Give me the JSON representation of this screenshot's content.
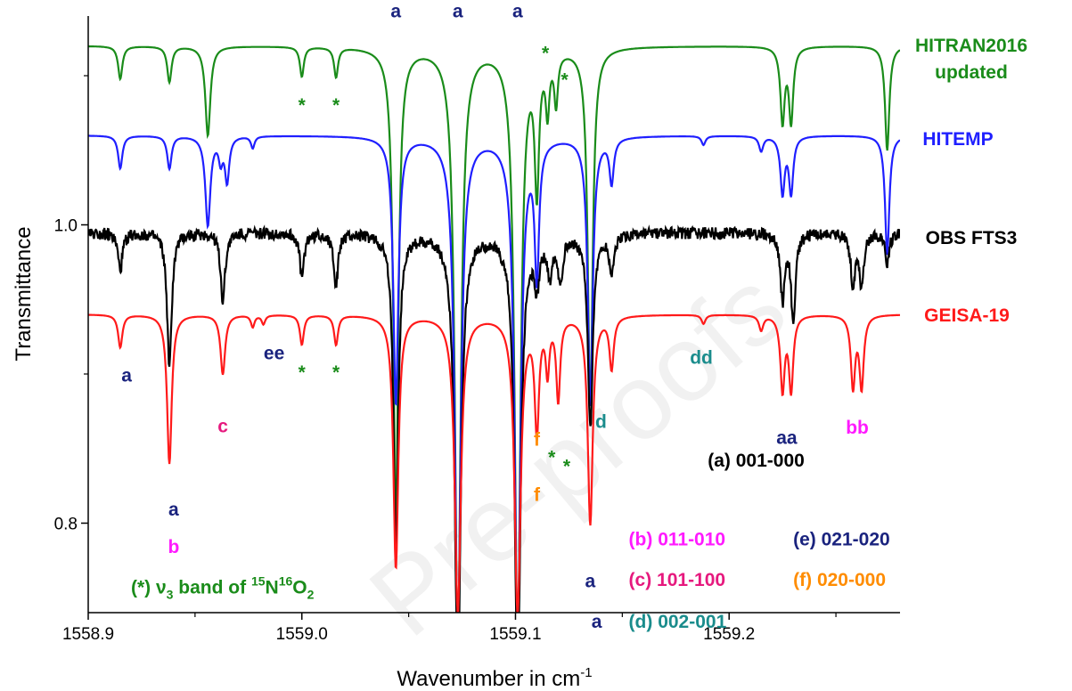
{
  "chart_data": {
    "type": "line",
    "xlabel": "Wavenumber in cm",
    "xlabel_sup": "-1",
    "ylabel": "Transmittance",
    "xlim": [
      1558.9,
      1559.28
    ],
    "x_ticks": [
      {
        "value": 1558.9,
        "label": "1558.9"
      },
      {
        "value": 1559.0,
        "label": "1559.0"
      },
      {
        "value": 1559.1,
        "label": "1559.1"
      },
      {
        "value": 1559.2,
        "label": "1559.2"
      }
    ],
    "y_ticks": [
      {
        "value": 1.0,
        "label": "1.0"
      },
      {
        "value": 0.8,
        "label": "0.8"
      }
    ],
    "ylim": [
      0.74,
      1.14
    ],
    "watermark": "Pre-proofs",
    "series": [
      {
        "name": "HITRAN2016\nupdated",
        "label_lines": [
          "HITRAN2016",
          "updated"
        ],
        "color": "#1a8c1a",
        "baseline": 1.12,
        "lines": [
          {
            "x": 1558.915,
            "depth": 0.022,
            "width": 0.0012
          },
          {
            "x": 1558.938,
            "depth": 0.024,
            "width": 0.0012
          },
          {
            "x": 1558.956,
            "depth": 0.06,
            "width": 0.0014
          },
          {
            "x": 1559.0,
            "depth": 0.02,
            "width": 0.0011
          },
          {
            "x": 1559.016,
            "depth": 0.02,
            "width": 0.0011
          },
          {
            "x": 1559.044,
            "depth": 0.32,
            "width": 0.0014
          },
          {
            "x": 1559.073,
            "depth": 0.4,
            "width": 0.0017
          },
          {
            "x": 1559.101,
            "depth": 0.4,
            "width": 0.0017
          },
          {
            "x": 1559.11,
            "depth": 0.09,
            "width": 0.0012
          },
          {
            "x": 1559.115,
            "depth": 0.038,
            "width": 0.001
          },
          {
            "x": 1559.119,
            "depth": 0.034,
            "width": 0.001
          },
          {
            "x": 1559.135,
            "depth": 0.24,
            "width": 0.0014
          },
          {
            "x": 1559.225,
            "depth": 0.05,
            "width": 0.0012
          },
          {
            "x": 1559.229,
            "depth": 0.05,
            "width": 0.0012
          },
          {
            "x": 1559.274,
            "depth": 0.07,
            "width": 0.0012
          }
        ]
      },
      {
        "name": "HITEMP",
        "label_lines": [
          "HITEMP"
        ],
        "color": "#1f1fff",
        "baseline": 1.06,
        "lines": [
          {
            "x": 1558.915,
            "depth": 0.022,
            "width": 0.0012
          },
          {
            "x": 1558.938,
            "depth": 0.022,
            "width": 0.0012
          },
          {
            "x": 1558.956,
            "depth": 0.06,
            "width": 0.0014
          },
          {
            "x": 1558.962,
            "depth": 0.015,
            "width": 0.0011
          },
          {
            "x": 1558.965,
            "depth": 0.03,
            "width": 0.0012
          },
          {
            "x": 1558.977,
            "depth": 0.008,
            "width": 0.001
          },
          {
            "x": 1559.044,
            "depth": 0.18,
            "width": 0.0014
          },
          {
            "x": 1559.073,
            "depth": 0.34,
            "width": 0.0017
          },
          {
            "x": 1559.101,
            "depth": 0.34,
            "width": 0.0017
          },
          {
            "x": 1559.11,
            "depth": 0.09,
            "width": 0.0012
          },
          {
            "x": 1559.135,
            "depth": 0.18,
            "width": 0.0014
          },
          {
            "x": 1559.145,
            "depth": 0.03,
            "width": 0.0012
          },
          {
            "x": 1559.188,
            "depth": 0.006,
            "width": 0.0011
          },
          {
            "x": 1559.215,
            "depth": 0.01,
            "width": 0.0012
          },
          {
            "x": 1559.225,
            "depth": 0.038,
            "width": 0.0012
          },
          {
            "x": 1559.229,
            "depth": 0.038,
            "width": 0.0012
          },
          {
            "x": 1559.274,
            "depth": 0.08,
            "width": 0.0012
          }
        ]
      },
      {
        "name": "OBS FTS3",
        "label_lines": [
          "OBS FTS3"
        ],
        "color": "#000000",
        "baseline": 0.995,
        "noise": 0.004,
        "lines": [
          {
            "x": 1558.915,
            "depth": 0.025,
            "width": 0.0013
          },
          {
            "x": 1558.938,
            "depth": 0.09,
            "width": 0.0013
          },
          {
            "x": 1558.963,
            "depth": 0.045,
            "width": 0.0013
          },
          {
            "x": 1559.0,
            "depth": 0.03,
            "width": 0.0012
          },
          {
            "x": 1559.016,
            "depth": 0.035,
            "width": 0.0012
          },
          {
            "x": 1559.044,
            "depth": 0.21,
            "width": 0.0014
          },
          {
            "x": 1559.073,
            "depth": 0.3,
            "width": 0.0017
          },
          {
            "x": 1559.101,
            "depth": 0.3,
            "width": 0.0017
          },
          {
            "x": 1559.11,
            "depth": 0.03,
            "width": 0.0014
          },
          {
            "x": 1559.116,
            "depth": 0.025,
            "width": 0.0013
          },
          {
            "x": 1559.121,
            "depth": 0.03,
            "width": 0.0013
          },
          {
            "x": 1559.135,
            "depth": 0.13,
            "width": 0.0014
          },
          {
            "x": 1559.145,
            "depth": 0.025,
            "width": 0.0013
          },
          {
            "x": 1559.225,
            "depth": 0.045,
            "width": 0.0012
          },
          {
            "x": 1559.23,
            "depth": 0.06,
            "width": 0.0012
          },
          {
            "x": 1559.258,
            "depth": 0.035,
            "width": 0.0012
          },
          {
            "x": 1559.262,
            "depth": 0.035,
            "width": 0.0012
          },
          {
            "x": 1559.274,
            "depth": 0.02,
            "width": 0.0012
          }
        ]
      },
      {
        "name": "GEISA-19",
        "label_lines": [
          "GEISA-19"
        ],
        "color": "#ff1a1a",
        "baseline": 0.94,
        "lines": [
          {
            "x": 1558.915,
            "depth": 0.022,
            "width": 0.0012
          },
          {
            "x": 1558.938,
            "depth": 0.1,
            "width": 0.0013
          },
          {
            "x": 1558.963,
            "depth": 0.04,
            "width": 0.0013
          },
          {
            "x": 1558.977,
            "depth": 0.008,
            "width": 0.001
          },
          {
            "x": 1558.982,
            "depth": 0.006,
            "width": 0.001
          },
          {
            "x": 1559.0,
            "depth": 0.02,
            "width": 0.0011
          },
          {
            "x": 1559.016,
            "depth": 0.02,
            "width": 0.0011
          },
          {
            "x": 1559.044,
            "depth": 0.17,
            "width": 0.0014
          },
          {
            "x": 1559.073,
            "depth": 0.2,
            "width": 0.0017
          },
          {
            "x": 1559.101,
            "depth": 0.2,
            "width": 0.0017
          },
          {
            "x": 1559.11,
            "depth": 0.075,
            "width": 0.0012
          },
          {
            "x": 1559.115,
            "depth": 0.035,
            "width": 0.001
          },
          {
            "x": 1559.12,
            "depth": 0.055,
            "width": 0.0011
          },
          {
            "x": 1559.135,
            "depth": 0.14,
            "width": 0.0014
          },
          {
            "x": 1559.145,
            "depth": 0.035,
            "width": 0.0012
          },
          {
            "x": 1559.188,
            "depth": 0.006,
            "width": 0.0011
          },
          {
            "x": 1559.215,
            "depth": 0.01,
            "width": 0.0012
          },
          {
            "x": 1559.225,
            "depth": 0.05,
            "width": 0.0012
          },
          {
            "x": 1559.229,
            "depth": 0.05,
            "width": 0.0012
          },
          {
            "x": 1559.258,
            "depth": 0.048,
            "width": 0.0012
          },
          {
            "x": 1559.262,
            "depth": 0.048,
            "width": 0.0012
          }
        ]
      }
    ],
    "annotations": [
      {
        "text": "a",
        "x": 1559.044,
        "y": 1.139,
        "color": "#1a237e"
      },
      {
        "text": "a",
        "x": 1559.073,
        "y": 1.139,
        "color": "#1a237e"
      },
      {
        "text": "a",
        "x": 1559.101,
        "y": 1.139,
        "color": "#1a237e"
      },
      {
        "text": "*",
        "x": 1559.114,
        "y": 1.111,
        "color": "#1a8c1a"
      },
      {
        "text": "*",
        "x": 1559.123,
        "y": 1.093,
        "color": "#1a8c1a"
      },
      {
        "text": "*",
        "x": 1559.0,
        "y": 1.076,
        "color": "#1a8c1a"
      },
      {
        "text": "*",
        "x": 1559.016,
        "y": 1.076,
        "color": "#1a8c1a"
      },
      {
        "text": "a",
        "x": 1558.918,
        "y": 0.895,
        "color": "#1a237e"
      },
      {
        "text": "ee",
        "x": 1558.987,
        "y": 0.91,
        "color": "#1a237e"
      },
      {
        "text": "*",
        "x": 1559.0,
        "y": 0.897,
        "color": "#1a8c1a"
      },
      {
        "text": "*",
        "x": 1559.016,
        "y": 0.897,
        "color": "#1a8c1a"
      },
      {
        "text": "c",
        "x": 1558.963,
        "y": 0.861,
        "color": "#e6197e"
      },
      {
        "text": "dd",
        "x": 1559.187,
        "y": 0.907,
        "color": "#1a8c8c"
      },
      {
        "text": "d",
        "x": 1559.14,
        "y": 0.864,
        "color": "#1a8c8c"
      },
      {
        "text": "aa",
        "x": 1559.227,
        "y": 0.853,
        "color": "#1a237e"
      },
      {
        "text": "bb",
        "x": 1559.26,
        "y": 0.86,
        "color": "#ff1aff"
      },
      {
        "text": "f",
        "x": 1559.11,
        "y": 0.852,
        "color": "#ff8c00"
      },
      {
        "text": "*",
        "x": 1559.117,
        "y": 0.84,
        "color": "#1a8c1a"
      },
      {
        "text": "*",
        "x": 1559.124,
        "y": 0.834,
        "color": "#1a8c1a"
      },
      {
        "text": "f",
        "x": 1559.11,
        "y": 0.815,
        "color": "#ff8c00"
      },
      {
        "text": "a",
        "x": 1558.94,
        "y": 0.805,
        "color": "#1a237e"
      },
      {
        "text": "b",
        "x": 1558.94,
        "y": 0.78,
        "color": "#ff1aff"
      },
      {
        "text": "a",
        "x": 1559.135,
        "y": 0.757,
        "color": "#1a237e"
      },
      {
        "text": "a",
        "x": 1559.138,
        "y": 0.73,
        "color": "#1a237e"
      }
    ],
    "legend": [
      {
        "prefix": "(a)",
        "text": "001-000",
        "color": "#000000",
        "prefix_color": "#000000",
        "x": 1559.19,
        "y": 0.838
      },
      {
        "prefix": "(b)",
        "text": "011-010",
        "color": "#ff1aff",
        "prefix_color": "#ff1aff",
        "x": 1559.153,
        "y": 0.785
      },
      {
        "prefix": "(e)",
        "text": "021-020",
        "color": "#1a237e",
        "prefix_color": "#1a237e",
        "x": 1559.23,
        "y": 0.785
      },
      {
        "prefix": "(c)",
        "text": "101-100",
        "color": "#e6197e",
        "prefix_color": "#e6197e",
        "x": 1559.153,
        "y": 0.758
      },
      {
        "prefix": "(f)",
        "text": "020-000",
        "color": "#ff8c00",
        "prefix_color": "#ff8c00",
        "x": 1559.23,
        "y": 0.758
      },
      {
        "prefix": "(d)",
        "text": "002-001",
        "color": "#1a8c8c",
        "prefix_color": "#1a8c8c",
        "x": 1559.153,
        "y": 0.73
      }
    ],
    "band_note": {
      "prefix": "(*)  ",
      "nu": "ν",
      "nu_sub": "3",
      "middle": " band of ",
      "sup1": "15",
      "n": "N",
      "sup2": "16",
      "o": "O",
      "sub2": "2",
      "color": "#1a8c1a",
      "x": 1558.91,
      "y": 0.745
    }
  }
}
